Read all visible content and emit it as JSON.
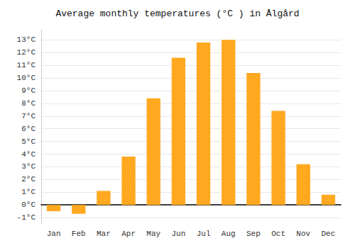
{
  "chart_data": {
    "type": "bar",
    "title": "Average monthly temperatures (°C ) in Ålgård",
    "categories": [
      "Jan",
      "Feb",
      "Mar",
      "Apr",
      "May",
      "Jun",
      "Jul",
      "Aug",
      "Sep",
      "Oct",
      "Nov",
      "Dec"
    ],
    "values": [
      -0.5,
      -0.7,
      1.1,
      3.8,
      8.4,
      11.6,
      12.8,
      13.0,
      10.4,
      7.4,
      3.2,
      0.8
    ],
    "color": "#FFA820",
    "ylim": [
      -1.5,
      13.8
    ],
    "yticks": [
      {
        "value": -1,
        "label": "-1°C"
      },
      {
        "value": 0,
        "label": "0°C"
      },
      {
        "value": 1,
        "label": "1°C"
      },
      {
        "value": 2,
        "label": "2°C"
      },
      {
        "value": 3,
        "label": "3°C"
      },
      {
        "value": 4,
        "label": "4°C"
      },
      {
        "value": 5,
        "label": "5°C"
      },
      {
        "value": 6,
        "label": "6°C"
      },
      {
        "value": 7,
        "label": "7°C"
      },
      {
        "value": 8,
        "label": "8°C"
      },
      {
        "value": 9,
        "label": "9°C"
      },
      {
        "value": 10,
        "label": "10°C"
      },
      {
        "value": 11,
        "label": "11°C"
      },
      {
        "value": 12,
        "label": "12°C"
      },
      {
        "value": 13,
        "label": "13°C"
      }
    ],
    "grid": true
  }
}
